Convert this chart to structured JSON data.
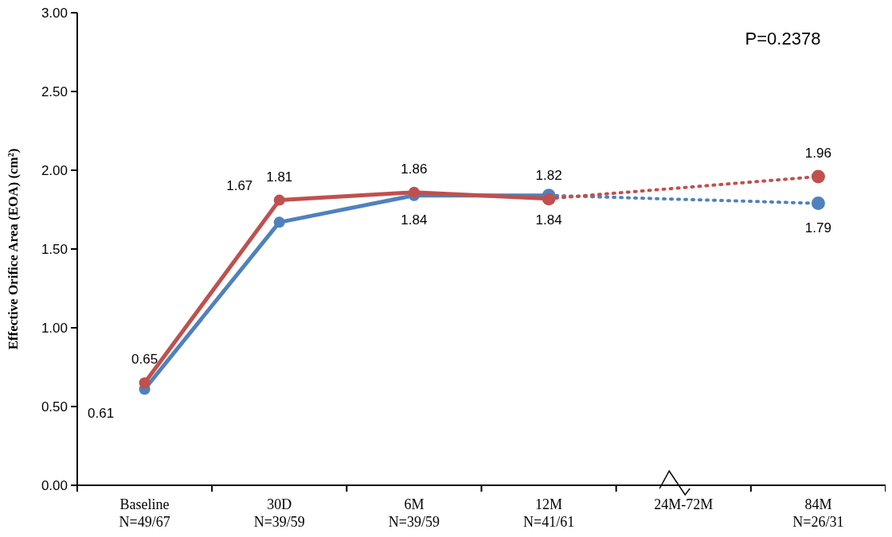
{
  "chart_data": {
    "type": "line",
    "ylabel": "Effective Orifice Area (EOA) (cm²)",
    "categories": [
      "Baseline\nN=49/67",
      "30D\nN=39/59",
      "6M\nN=39/59",
      "12M\nN=41/61",
      "24M-72M",
      "84M\nN=26/31"
    ],
    "series": [
      {
        "color": "#4f81bd",
        "line_style": "solid",
        "values": [
          0.61,
          1.67,
          1.84,
          1.84,
          null,
          null
        ],
        "value_labels": [
          "0.61",
          "1.67",
          "1.84",
          "1.84",
          null,
          null
        ]
      },
      {
        "color": "#c0504d",
        "line_style": "solid",
        "values": [
          0.65,
          1.81,
          1.86,
          1.82,
          null,
          null
        ],
        "value_labels": [
          "0.65",
          "1.81",
          "1.86",
          "1.82",
          null,
          null
        ]
      },
      {
        "color": "#4f81bd",
        "line_style": "dotted",
        "values": [
          null,
          null,
          null,
          1.84,
          null,
          1.79
        ],
        "value_labels": [
          null,
          null,
          null,
          null,
          null,
          "1.79"
        ]
      },
      {
        "color": "#c0504d",
        "line_style": "dotted",
        "values": [
          null,
          null,
          null,
          1.82,
          null,
          1.96
        ],
        "value_labels": [
          null,
          null,
          null,
          null,
          null,
          "1.96"
        ]
      }
    ],
    "ylim": [
      0,
      3
    ],
    "yticks": [
      {
        "value": 0,
        "label": "0.00"
      },
      {
        "value": 0.5,
        "label": "0.50"
      },
      {
        "value": 1,
        "label": "1.00"
      },
      {
        "value": 1.5,
        "label": "1.50"
      },
      {
        "value": 2,
        "label": "2.00"
      },
      {
        "value": 2.5,
        "label": "2.50"
      },
      {
        "value": 3,
        "label": "3.00"
      }
    ],
    "marker": "circle",
    "grid": false,
    "annotations": [
      "P=0.2378"
    ]
  }
}
